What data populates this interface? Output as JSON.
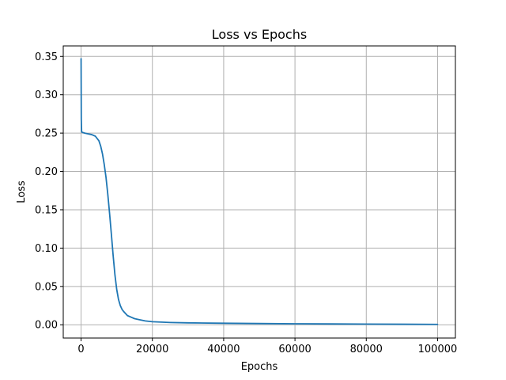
{
  "chart_data": {
    "type": "line",
    "title": "Loss vs Epochs",
    "xlabel": "Epochs",
    "ylabel": "Loss",
    "xlim": [
      -5000,
      105000
    ],
    "ylim": [
      -0.0173,
      0.3637
    ],
    "xticks": [
      0,
      20000,
      40000,
      60000,
      80000,
      100000
    ],
    "yticks": [
      0.0,
      0.05,
      0.1,
      0.15,
      0.2,
      0.25,
      0.3,
      0.35
    ],
    "xtick_labels": [
      "0",
      "20000",
      "40000",
      "60000",
      "80000",
      "100000"
    ],
    "ytick_labels": [
      "0.00",
      "0.05",
      "0.10",
      "0.15",
      "0.20",
      "0.25",
      "0.30",
      "0.35"
    ],
    "grid": true,
    "series": [
      {
        "color": "#1f77b4",
        "x": [
          0,
          60,
          150,
          300,
          1000,
          2000,
          3000,
          4000,
          5000,
          5500,
          6000,
          6500,
          7000,
          7500,
          8000,
          8500,
          9000,
          9500,
          10000,
          10500,
          11000,
          11500,
          12000,
          13000,
          14000,
          15000,
          16000,
          18000,
          20000,
          25000,
          30000,
          40000,
          50000,
          60000,
          70000,
          80000,
          90000,
          100000
        ],
        "y": [
          0.347,
          0.268,
          0.252,
          0.251,
          0.25,
          0.249,
          0.248,
          0.246,
          0.24,
          0.233,
          0.223,
          0.209,
          0.192,
          0.17,
          0.145,
          0.118,
          0.09,
          0.065,
          0.046,
          0.033,
          0.025,
          0.02,
          0.017,
          0.012,
          0.01,
          0.008,
          0.007,
          0.005,
          0.004,
          0.003,
          0.0025,
          0.002,
          0.0016,
          0.0013,
          0.0011,
          0.0009,
          0.0007,
          0.0005
        ]
      }
    ]
  }
}
